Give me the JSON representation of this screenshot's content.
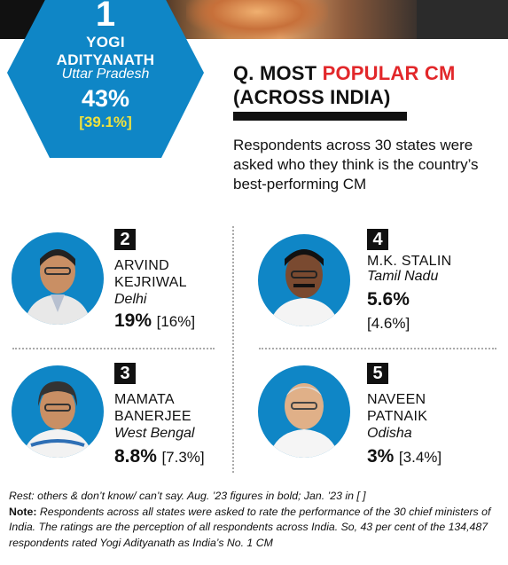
{
  "top": {
    "rank": "1",
    "name": "YOGI ADITYANATH",
    "state": "Uttar Pradesh",
    "pct": "43%",
    "prev": "[39.1%]"
  },
  "question": {
    "prefix": "Q.",
    "title_black_1": "MOST",
    "title_red": "POPULAR CM",
    "title_line2": "(ACROSS INDIA)",
    "description": "Respondents across 30 states were asked who they think is the country’s best-performing CM"
  },
  "cms": [
    {
      "rank": "2",
      "name_line1": "ARVIND",
      "name_line2": "KEJRIWAL",
      "state": "Delhi",
      "pct": "19%",
      "prev": "[16%]",
      "avatar_icon": "portrait-icon"
    },
    {
      "rank": "4",
      "name_line1": "M.K. STALIN",
      "name_line2": "",
      "state": "Tamil Nadu",
      "pct": "5.6%",
      "prev": "[4.6%]",
      "avatar_icon": "portrait-icon"
    },
    {
      "rank": "3",
      "name_line1": "MAMATA",
      "name_line2": "BANERJEE",
      "state": "West Bengal",
      "pct": "8.8%",
      "prev": "[7.3%]",
      "avatar_icon": "portrait-icon"
    },
    {
      "rank": "5",
      "name_line1": "NAVEEN",
      "name_line2": "PATNAIK",
      "state": "Odisha",
      "pct": "3%",
      "prev": "[3.4%]",
      "avatar_icon": "portrait-icon"
    }
  ],
  "footer": {
    "rest": "Rest: others & don’t know/ can’t say. Aug. ’23 figures in bold; Jan. ’23 in [ ]",
    "note_label": "Note:",
    "note_text": "Respondents across all states were asked to rate the performance of the 30 chief ministers of India. The ratings are the perception of all respondents across India. So, 43 per cent of the 134,487 respondents rated Yogi Adityanath as India’s No. 1 CM"
  },
  "colors": {
    "hex_blue": "#0f86c6",
    "accent_red": "#e2272a",
    "highlight_yellow": "#f1e23d"
  }
}
